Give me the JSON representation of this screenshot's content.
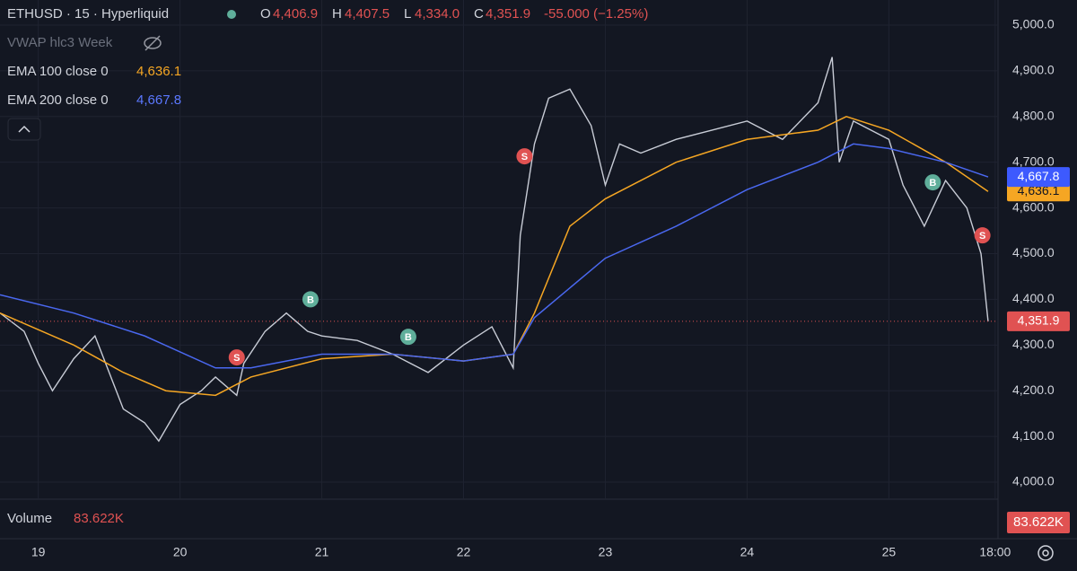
{
  "chart_data": {
    "type": "line",
    "header": {
      "symbol": "ETHUSD · 15 · Hyperliquid",
      "open_key": "O",
      "open": "4,406.9",
      "high_key": "H",
      "high": "4,407.5",
      "low_key": "L",
      "low": "4,334.0",
      "close_key": "C",
      "close": "4,351.9",
      "change": "-55.000 (−1.25%)"
    },
    "indicators": [
      {
        "name": "VWAP hlc3 Week"
      },
      {
        "name": "EMA 100 close 0",
        "value": "4,636.1"
      },
      {
        "name": "EMA 200 close 0",
        "value": "4,667.8"
      }
    ],
    "volume_label": "Volume",
    "volume_value": "83.622K",
    "xlim": [
      18.73,
      25.77
    ],
    "xticks": [
      19,
      20,
      21,
      22,
      23,
      24,
      25,
      {
        "value": 25.75,
        "label": "18:00"
      }
    ],
    "ylim": [
      3950,
      5050
    ],
    "yticks": [
      {
        "value": 4000,
        "label": "4,000.0"
      },
      {
        "value": 4100,
        "label": "4,100.0"
      },
      {
        "value": 4200,
        "label": "4,200.0"
      },
      {
        "value": 4300,
        "label": "4,300.0"
      },
      {
        "value": 4400,
        "label": "4,400.0"
      },
      {
        "value": 4500,
        "label": "4,500.0"
      },
      {
        "value": 4600,
        "label": "4,600.0"
      },
      {
        "value": 4700,
        "label": "4,700.0"
      },
      {
        "value": 4800,
        "label": "4,800.0"
      },
      {
        "value": 4900,
        "label": "4,900.0"
      },
      {
        "value": 5000,
        "label": "5,000.0"
      }
    ],
    "grid": true,
    "series": [
      {
        "name": "ETHUSD",
        "color": "#c8ccd6",
        "tag_color": "#e05252",
        "tag_label": "4,351.9",
        "x": [
          18.73,
          18.9,
          19.0,
          19.1,
          19.25,
          19.4,
          19.5,
          19.6,
          19.75,
          19.85,
          20.0,
          20.15,
          20.25,
          20.4,
          20.45,
          20.6,
          20.75,
          20.9,
          21.0,
          21.25,
          21.5,
          21.75,
          22.0,
          22.2,
          22.35,
          22.4,
          22.5,
          22.6,
          22.75,
          22.9,
          23.0,
          23.1,
          23.25,
          23.5,
          23.75,
          24.0,
          24.25,
          24.5,
          24.6,
          24.65,
          24.75,
          25.0,
          25.1,
          25.25,
          25.4,
          25.55,
          25.65,
          25.7
        ],
        "values": [
          4370,
          4330,
          4260,
          4200,
          4270,
          4320,
          4240,
          4160,
          4130,
          4090,
          4170,
          4200,
          4230,
          4190,
          4260,
          4330,
          4370,
          4330,
          4320,
          4310,
          4280,
          4240,
          4300,
          4340,
          4250,
          4540,
          4740,
          4840,
          4860,
          4780,
          4650,
          4740,
          4720,
          4750,
          4770,
          4790,
          4750,
          4830,
          4930,
          4700,
          4790,
          4750,
          4650,
          4560,
          4660,
          4600,
          4500,
          4351.9
        ]
      },
      {
        "name": "EMA 100",
        "color": "#f5a623",
        "tag_color": "#f5a623",
        "tag_label": "4,636.1",
        "x": [
          18.73,
          19.25,
          19.6,
          19.9,
          20.25,
          20.5,
          21.0,
          21.5,
          22.0,
          22.35,
          22.5,
          22.75,
          23.0,
          23.5,
          24.0,
          24.5,
          24.7,
          25.0,
          25.4,
          25.7
        ],
        "values": [
          4370,
          4300,
          4240,
          4200,
          4190,
          4230,
          4270,
          4280,
          4265,
          4280,
          4370,
          4560,
          4620,
          4700,
          4750,
          4770,
          4800,
          4770,
          4700,
          4636.1
        ]
      },
      {
        "name": "EMA 200",
        "color": "#4a68f0",
        "tag_color": "#3d5afe",
        "tag_label": "4,667.8",
        "x": [
          18.73,
          19.25,
          19.75,
          20.25,
          20.5,
          21.0,
          21.5,
          22.0,
          22.35,
          22.5,
          23.0,
          23.5,
          24.0,
          24.5,
          24.75,
          25.0,
          25.4,
          25.7
        ],
        "values": [
          4410,
          4370,
          4320,
          4250,
          4250,
          4280,
          4280,
          4265,
          4280,
          4360,
          4490,
          4560,
          4640,
          4700,
          4740,
          4730,
          4700,
          4667.8
        ]
      }
    ],
    "signals": [
      {
        "label": "S",
        "x": 20.4,
        "y": 4273,
        "color": "#e05252"
      },
      {
        "label": "B",
        "x": 20.92,
        "y": 4400,
        "color": "#5fae9a"
      },
      {
        "label": "B",
        "x": 21.61,
        "y": 4318,
        "color": "#5fae9a"
      },
      {
        "label": "S",
        "x": 22.43,
        "y": 4713,
        "color": "#e05252"
      },
      {
        "label": "B",
        "x": 25.31,
        "y": 4656,
        "color": "#5fae9a"
      },
      {
        "label": "S",
        "x": 25.66,
        "y": 4540,
        "color": "#e05252"
      }
    ]
  }
}
